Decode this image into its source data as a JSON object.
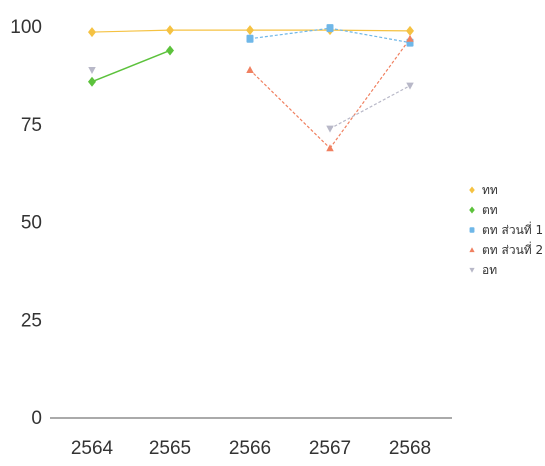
{
  "chart_data": {
    "type": "line",
    "categories": [
      "2564",
      "2565",
      "2566",
      "2567",
      "2568"
    ],
    "ylim": [
      0,
      100
    ],
    "yticks": [
      0,
      25,
      50,
      75,
      100
    ],
    "grid": false,
    "legend_position": "right",
    "series": [
      {
        "name": "ทท",
        "color": "#f5c242",
        "marker": "diamond",
        "values": [
          98.7,
          99.2,
          99.2,
          99.2,
          99.0
        ]
      },
      {
        "name": "ตท",
        "color": "#5cc23c",
        "marker": "diamond",
        "values": [
          86,
          94,
          null,
          null,
          null
        ]
      },
      {
        "name": "ตท ส่วนที่ 1",
        "color": "#6fb7e8",
        "marker": "square",
        "values": [
          null,
          null,
          97,
          99.7,
          96
        ]
      },
      {
        "name": "ตท ส่วนที่ 2",
        "color": "#f08060",
        "marker": "triangle",
        "values": [
          null,
          null,
          89,
          69,
          97
        ]
      },
      {
        "name": "อท",
        "color": "#b8b8c8",
        "marker": "triangle-down",
        "values": [
          89,
          null,
          null,
          74,
          85
        ]
      }
    ]
  }
}
